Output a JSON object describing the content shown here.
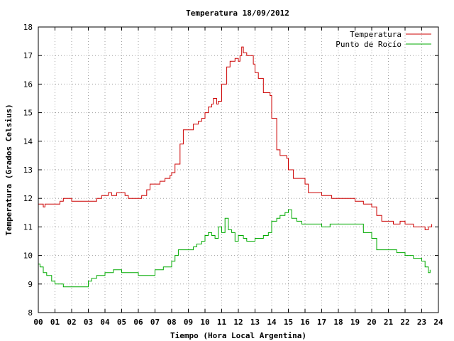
{
  "chart_data": {
    "type": "line",
    "title": "Temperatura 18/09/2012",
    "xlabel": "Tiempo (Hora Local Argentina)",
    "ylabel": "Temperatura (Grados Celsius)",
    "xlim": [
      0,
      24
    ],
    "ylim": [
      8,
      18
    ],
    "x_ticks": [
      "00",
      "01",
      "02",
      "03",
      "04",
      "05",
      "06",
      "07",
      "08",
      "09",
      "10",
      "11",
      "12",
      "13",
      "14",
      "15",
      "16",
      "17",
      "18",
      "19",
      "20",
      "21",
      "22",
      "23",
      "24"
    ],
    "y_ticks": [
      "8",
      "9",
      "10",
      "11",
      "12",
      "13",
      "14",
      "15",
      "16",
      "17",
      "18"
    ],
    "grid": true,
    "legend_position": "top-right",
    "series": [
      {
        "name": "Temperatura",
        "color": "#cc0000",
        "x": [
          0.0,
          0.2,
          0.3,
          0.4,
          1.0,
          1.3,
          1.5,
          2.0,
          2.5,
          3.3,
          3.5,
          3.8,
          4.0,
          4.2,
          4.4,
          4.7,
          5.0,
          5.2,
          5.4,
          6.0,
          6.2,
          6.5,
          6.7,
          7.0,
          7.3,
          7.6,
          7.9,
          8.0,
          8.2,
          8.5,
          8.7,
          9.0,
          9.3,
          9.6,
          9.8,
          10.0,
          10.2,
          10.4,
          10.5,
          10.7,
          10.8,
          11.0,
          11.3,
          11.5,
          11.8,
          12.0,
          12.1,
          12.2,
          12.3,
          12.5,
          12.9,
          13.0,
          13.2,
          13.5,
          13.9,
          14.0,
          14.3,
          14.5,
          14.9,
          15.0,
          15.3,
          15.7,
          16.0,
          16.2,
          16.5,
          17.0,
          17.3,
          17.6,
          18.0,
          18.5,
          19.0,
          19.5,
          20.0,
          20.3,
          20.6,
          21.0,
          21.3,
          21.7,
          22.0,
          22.5,
          23.0,
          23.2,
          23.4,
          23.6
        ],
        "values": [
          11.8,
          11.8,
          11.7,
          11.8,
          11.8,
          11.9,
          12.0,
          11.9,
          11.9,
          11.9,
          12.0,
          12.1,
          12.1,
          12.2,
          12.1,
          12.2,
          12.2,
          12.1,
          12.0,
          12.0,
          12.1,
          12.3,
          12.5,
          12.5,
          12.6,
          12.7,
          12.8,
          12.9,
          13.2,
          13.9,
          14.4,
          14.4,
          14.6,
          14.7,
          14.8,
          15.0,
          15.2,
          15.3,
          15.5,
          15.3,
          15.4,
          16.0,
          16.6,
          16.8,
          16.9,
          16.8,
          17.0,
          17.3,
          17.1,
          17.0,
          16.7,
          16.4,
          16.2,
          15.7,
          15.6,
          14.8,
          13.7,
          13.5,
          13.4,
          13.0,
          12.7,
          12.7,
          12.5,
          12.2,
          12.2,
          12.1,
          12.1,
          12.0,
          12.0,
          12.0,
          11.9,
          11.8,
          11.7,
          11.4,
          11.2,
          11.2,
          11.1,
          11.2,
          11.1,
          11.0,
          11.0,
          10.9,
          11.0,
          11.1
        ]
      },
      {
        "name": "Punto de Rocío",
        "color": "#00aa00",
        "x": [
          0.0,
          0.1,
          0.3,
          0.5,
          0.8,
          1.0,
          1.3,
          1.5,
          2.0,
          2.5,
          3.0,
          3.2,
          3.5,
          3.8,
          4.0,
          4.5,
          5.0,
          5.5,
          6.0,
          6.5,
          7.0,
          7.5,
          8.0,
          8.2,
          8.4,
          8.6,
          8.8,
          9.0,
          9.3,
          9.5,
          9.8,
          10.0,
          10.2,
          10.4,
          10.6,
          10.8,
          11.0,
          11.2,
          11.4,
          11.6,
          11.8,
          12.0,
          12.3,
          12.5,
          13.0,
          13.3,
          13.5,
          13.8,
          14.0,
          14.3,
          14.5,
          14.8,
          15.0,
          15.2,
          15.5,
          15.8,
          16.0,
          16.5,
          17.0,
          17.5,
          18.0,
          18.5,
          19.0,
          19.5,
          20.0,
          20.3,
          20.6,
          21.0,
          21.5,
          22.0,
          22.5,
          23.0,
          23.2,
          23.4,
          23.5
        ],
        "values": [
          9.7,
          9.6,
          9.4,
          9.3,
          9.1,
          9.0,
          9.0,
          8.9,
          8.9,
          8.9,
          9.1,
          9.2,
          9.3,
          9.3,
          9.4,
          9.5,
          9.4,
          9.4,
          9.3,
          9.3,
          9.5,
          9.6,
          9.8,
          10.0,
          10.2,
          10.2,
          10.2,
          10.2,
          10.3,
          10.4,
          10.5,
          10.7,
          10.8,
          10.7,
          10.6,
          11.0,
          10.8,
          11.3,
          10.9,
          10.8,
          10.5,
          10.7,
          10.6,
          10.5,
          10.6,
          10.6,
          10.7,
          10.8,
          11.2,
          11.3,
          11.4,
          11.5,
          11.6,
          11.3,
          11.2,
          11.1,
          11.1,
          11.1,
          11.0,
          11.1,
          11.1,
          11.1,
          11.1,
          10.8,
          10.6,
          10.2,
          10.2,
          10.2,
          10.1,
          10.0,
          9.9,
          9.8,
          9.6,
          9.4,
          9.5
        ]
      }
    ]
  }
}
